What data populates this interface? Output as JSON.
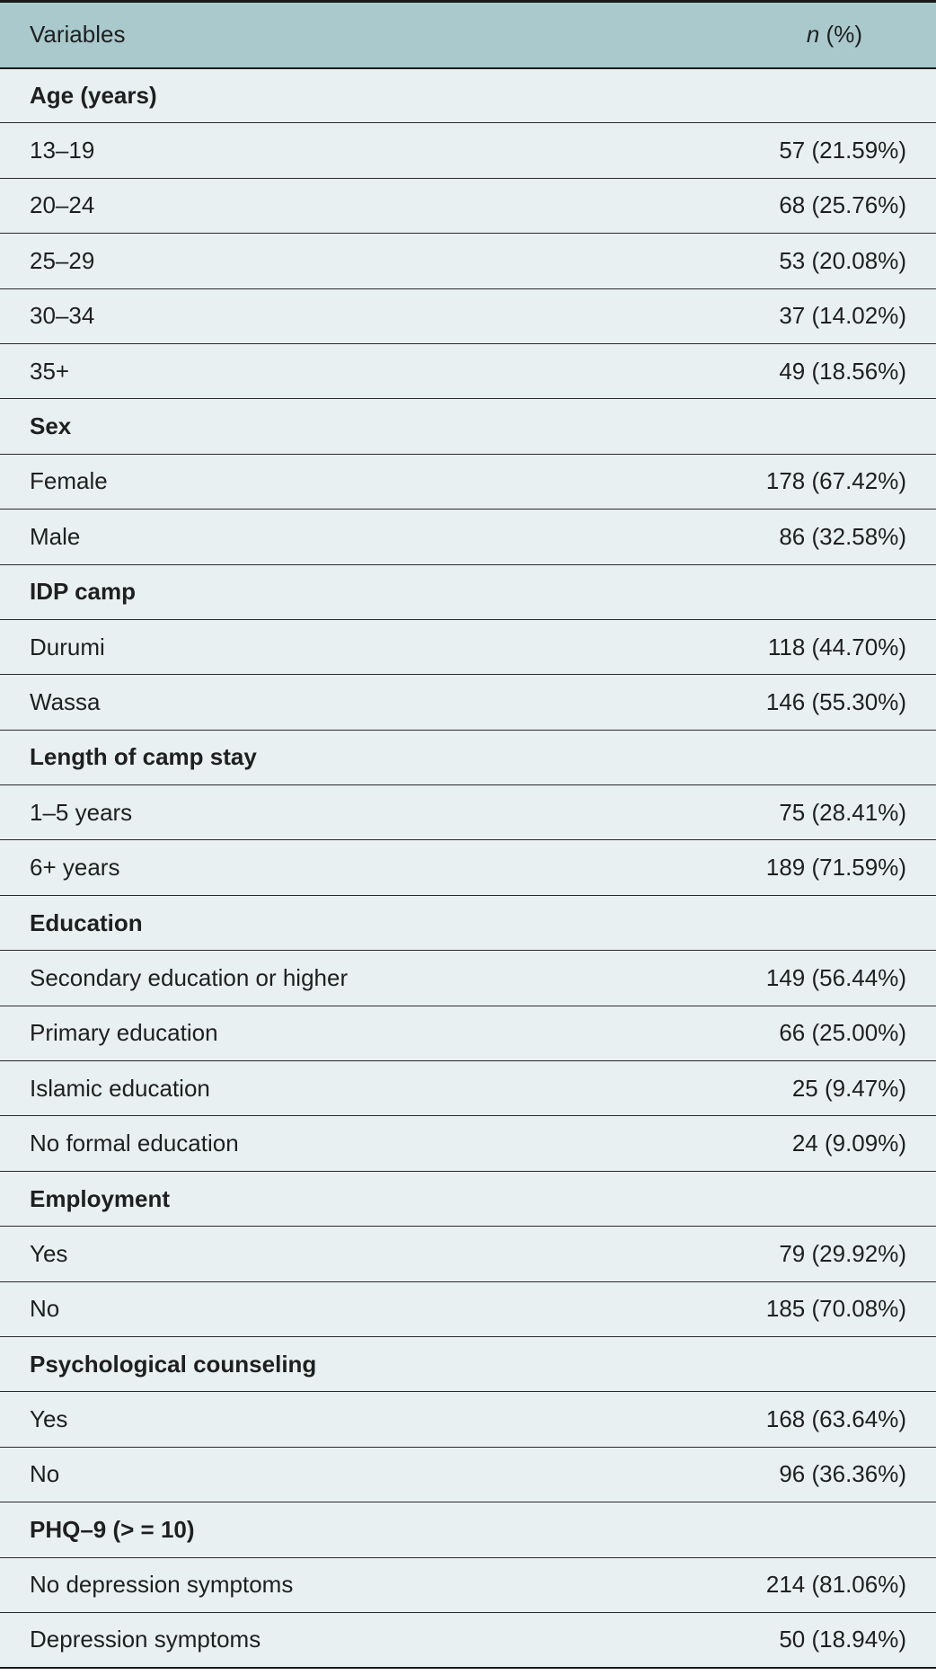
{
  "table": {
    "header": {
      "variables": "Variables",
      "n_italic": "n",
      "n_rest": " (%)"
    },
    "rows": [
      {
        "type": "group",
        "label": "Age (years)",
        "value": ""
      },
      {
        "type": "item",
        "label": "13–19",
        "value": "57 (21.59%)"
      },
      {
        "type": "item",
        "label": "20–24",
        "value": "68 (25.76%)"
      },
      {
        "type": "item",
        "label": "25–29",
        "value": "53 (20.08%)"
      },
      {
        "type": "item",
        "label": "30–34",
        "value": "37 (14.02%)"
      },
      {
        "type": "item",
        "label": "35+",
        "value": "49 (18.56%)"
      },
      {
        "type": "group",
        "label": "Sex",
        "value": ""
      },
      {
        "type": "item",
        "label": "Female",
        "value": "178 (67.42%)"
      },
      {
        "type": "item",
        "label": "Male",
        "value": "86 (32.58%)"
      },
      {
        "type": "group",
        "label": "IDP camp",
        "value": ""
      },
      {
        "type": "item",
        "label": "Durumi",
        "value": "118 (44.70%)"
      },
      {
        "type": "item",
        "label": "Wassa",
        "value": "146 (55.30%)"
      },
      {
        "type": "group",
        "label": "Length of camp stay",
        "value": ""
      },
      {
        "type": "item",
        "label": "1–5 years",
        "value": "75 (28.41%)"
      },
      {
        "type": "item",
        "label": "6+ years",
        "value": "189 (71.59%)"
      },
      {
        "type": "group",
        "label": "Education",
        "value": ""
      },
      {
        "type": "item",
        "label": "Secondary education or higher",
        "value": "149 (56.44%)"
      },
      {
        "type": "item",
        "label": "Primary education",
        "value": "66 (25.00%)"
      },
      {
        "type": "item",
        "label": "Islamic education",
        "value": "25 (9.47%)"
      },
      {
        "type": "item",
        "label": "No formal education",
        "value": "24 (9.09%)"
      },
      {
        "type": "group",
        "label": "Employment",
        "value": ""
      },
      {
        "type": "item",
        "label": "Yes",
        "value": "79 (29.92%)"
      },
      {
        "type": "item",
        "label": "No",
        "value": "185 (70.08%)"
      },
      {
        "type": "group",
        "label": "Psychological counseling",
        "value": ""
      },
      {
        "type": "item",
        "label": "Yes",
        "value": "168 (63.64%)"
      },
      {
        "type": "item",
        "label": "No",
        "value": "96 (36.36%)"
      },
      {
        "type": "group",
        "label": "PHQ–9 (> = 10)",
        "value": ""
      },
      {
        "type": "item",
        "label": "No depression symptoms",
        "value": "214 (81.06%)"
      },
      {
        "type": "item",
        "label": "Depression symptoms",
        "value": "50 (18.94%)"
      }
    ]
  }
}
